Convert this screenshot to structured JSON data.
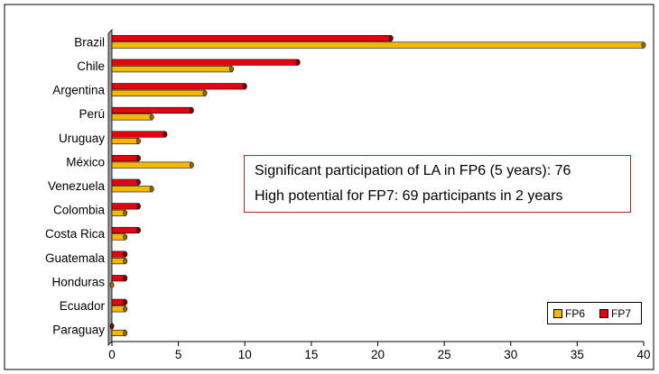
{
  "chart_data": {
    "type": "bar",
    "orientation": "horizontal",
    "categories": [
      "Brazil",
      "Chile",
      "Argentina",
      "Perú",
      "Uruguay",
      "México",
      "Venezuela",
      "Colombia",
      "Costa Rica",
      "Guatemala",
      "Honduras",
      "Ecuador",
      "Paraguay"
    ],
    "series": [
      {
        "name": "FP6",
        "color": "#f5b800",
        "values": [
          40,
          9,
          7,
          3,
          2,
          6,
          3,
          1,
          1,
          1,
          0,
          1,
          1
        ]
      },
      {
        "name": "FP7",
        "color": "#e8000f",
        "values": [
          21,
          14,
          10,
          6,
          4,
          2,
          2,
          2,
          2,
          1,
          1,
          1,
          0
        ]
      }
    ],
    "xlim": [
      0,
      40
    ],
    "xticks": [
      0,
      5,
      10,
      15,
      20,
      25,
      30,
      35,
      40
    ],
    "grid": false,
    "legend_position": "bottom-right",
    "annotations": [
      "Significant participation of LA in FP6 (5 years): 76",
      "High potential for FP7: 69 participants in 2 years"
    ]
  }
}
